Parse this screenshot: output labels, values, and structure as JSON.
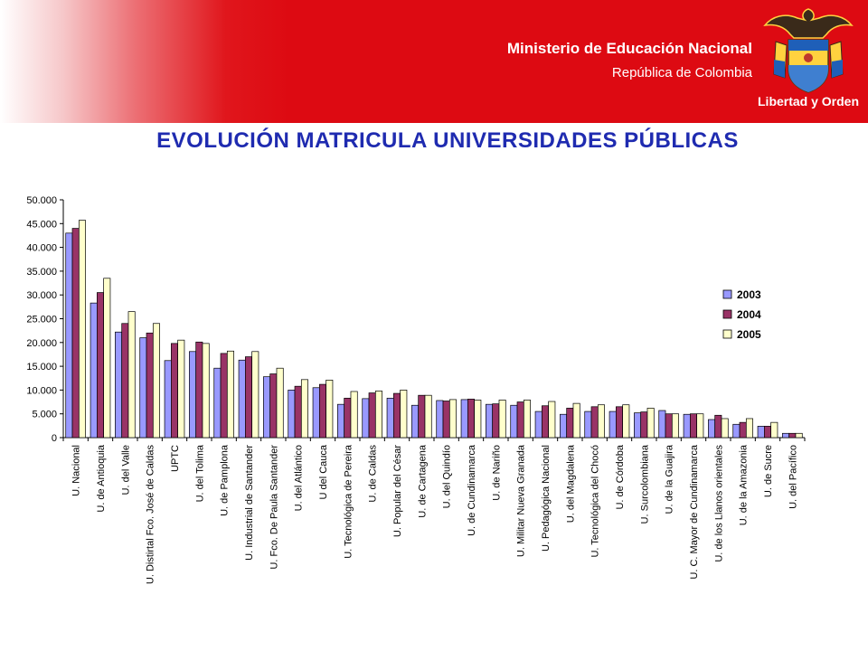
{
  "header": {
    "ministry": "Ministerio de Educación Nacional",
    "country": "República de Colombia",
    "motto": "Libertad y Orden",
    "logo_icon": "colombia-coat-of-arms-icon",
    "banner_color": "#dd0a12"
  },
  "title": "EVOLUCIÓN MATRICULA UNIVERSIDADES PÚBLICAS",
  "chart_data": {
    "type": "bar",
    "title": "EVOLUCIÓN MATRICULA UNIVERSIDADES PÚBLICAS",
    "xlabel": "",
    "ylabel": "",
    "ylim": [
      0,
      50000
    ],
    "y_ticks": [
      "0",
      "5.000",
      "10.000",
      "15.000",
      "20.000",
      "25.000",
      "30.000",
      "35.000",
      "40.000",
      "45.000",
      "50.000"
    ],
    "grid": false,
    "legend_position": "right",
    "categories": [
      "U. Nacional",
      "U. de Antioquia",
      "U. del Valle",
      "U. Distirtal Fco. José de Caldas",
      "UPTC",
      "U. del Tolima",
      "U. de Pamplona",
      "U. Industrial de Santander",
      "U. Fco. De Paula Santander",
      "U. del Atlántico",
      "U del Cauca",
      "U. Tecnológica de Pereira",
      "U. de Caldas",
      "U. Popular del César",
      "U. de Cartagena",
      "U. del Quindío",
      "U. de Cundinamarca",
      "U. de Nariño",
      "U. Militar Nueva Granada",
      "U. Pedagógica Nacional",
      "U. del Magdalena",
      "U. Tecnológica del Chocó",
      "U. de Córdoba",
      "U. Surcolombiana",
      "U. de la Guajira",
      "U. C. Mayor de Cundinamarca",
      "U. de los Llanos orientales",
      "U. de la Amazonia",
      "U. de Sucre",
      "U. del Pacífico"
    ],
    "series": [
      {
        "name": "2003",
        "color": "#9999ff",
        "values": [
          43000,
          28300,
          22200,
          21000,
          16200,
          18100,
          14600,
          16300,
          12800,
          10000,
          10500,
          7000,
          8200,
          8300,
          6800,
          7800,
          8000,
          7000,
          6800,
          5500,
          4900,
          5500,
          5500,
          5200,
          5700,
          4900,
          3800,
          2800,
          2400,
          900
        ]
      },
      {
        "name": "2004",
        "color": "#993366",
        "values": [
          44000,
          30500,
          24000,
          22000,
          19800,
          20100,
          17700,
          17000,
          13400,
          10800,
          11200,
          8300,
          9400,
          9300,
          8900,
          7700,
          8100,
          7100,
          7500,
          6700,
          6200,
          6500,
          6500,
          5400,
          5000,
          5000,
          4700,
          3200,
          2400,
          900
        ]
      },
      {
        "name": "2005",
        "color": "#ffffcc",
        "values": [
          45700,
          33500,
          26500,
          24000,
          20500,
          19800,
          18200,
          18100,
          14600,
          12200,
          12100,
          9700,
          9800,
          10000,
          8900,
          8000,
          7900,
          7900,
          7900,
          7600,
          7200,
          6900,
          6900,
          6200,
          5000,
          5000,
          4000,
          4000,
          3200,
          900
        ]
      }
    ]
  }
}
